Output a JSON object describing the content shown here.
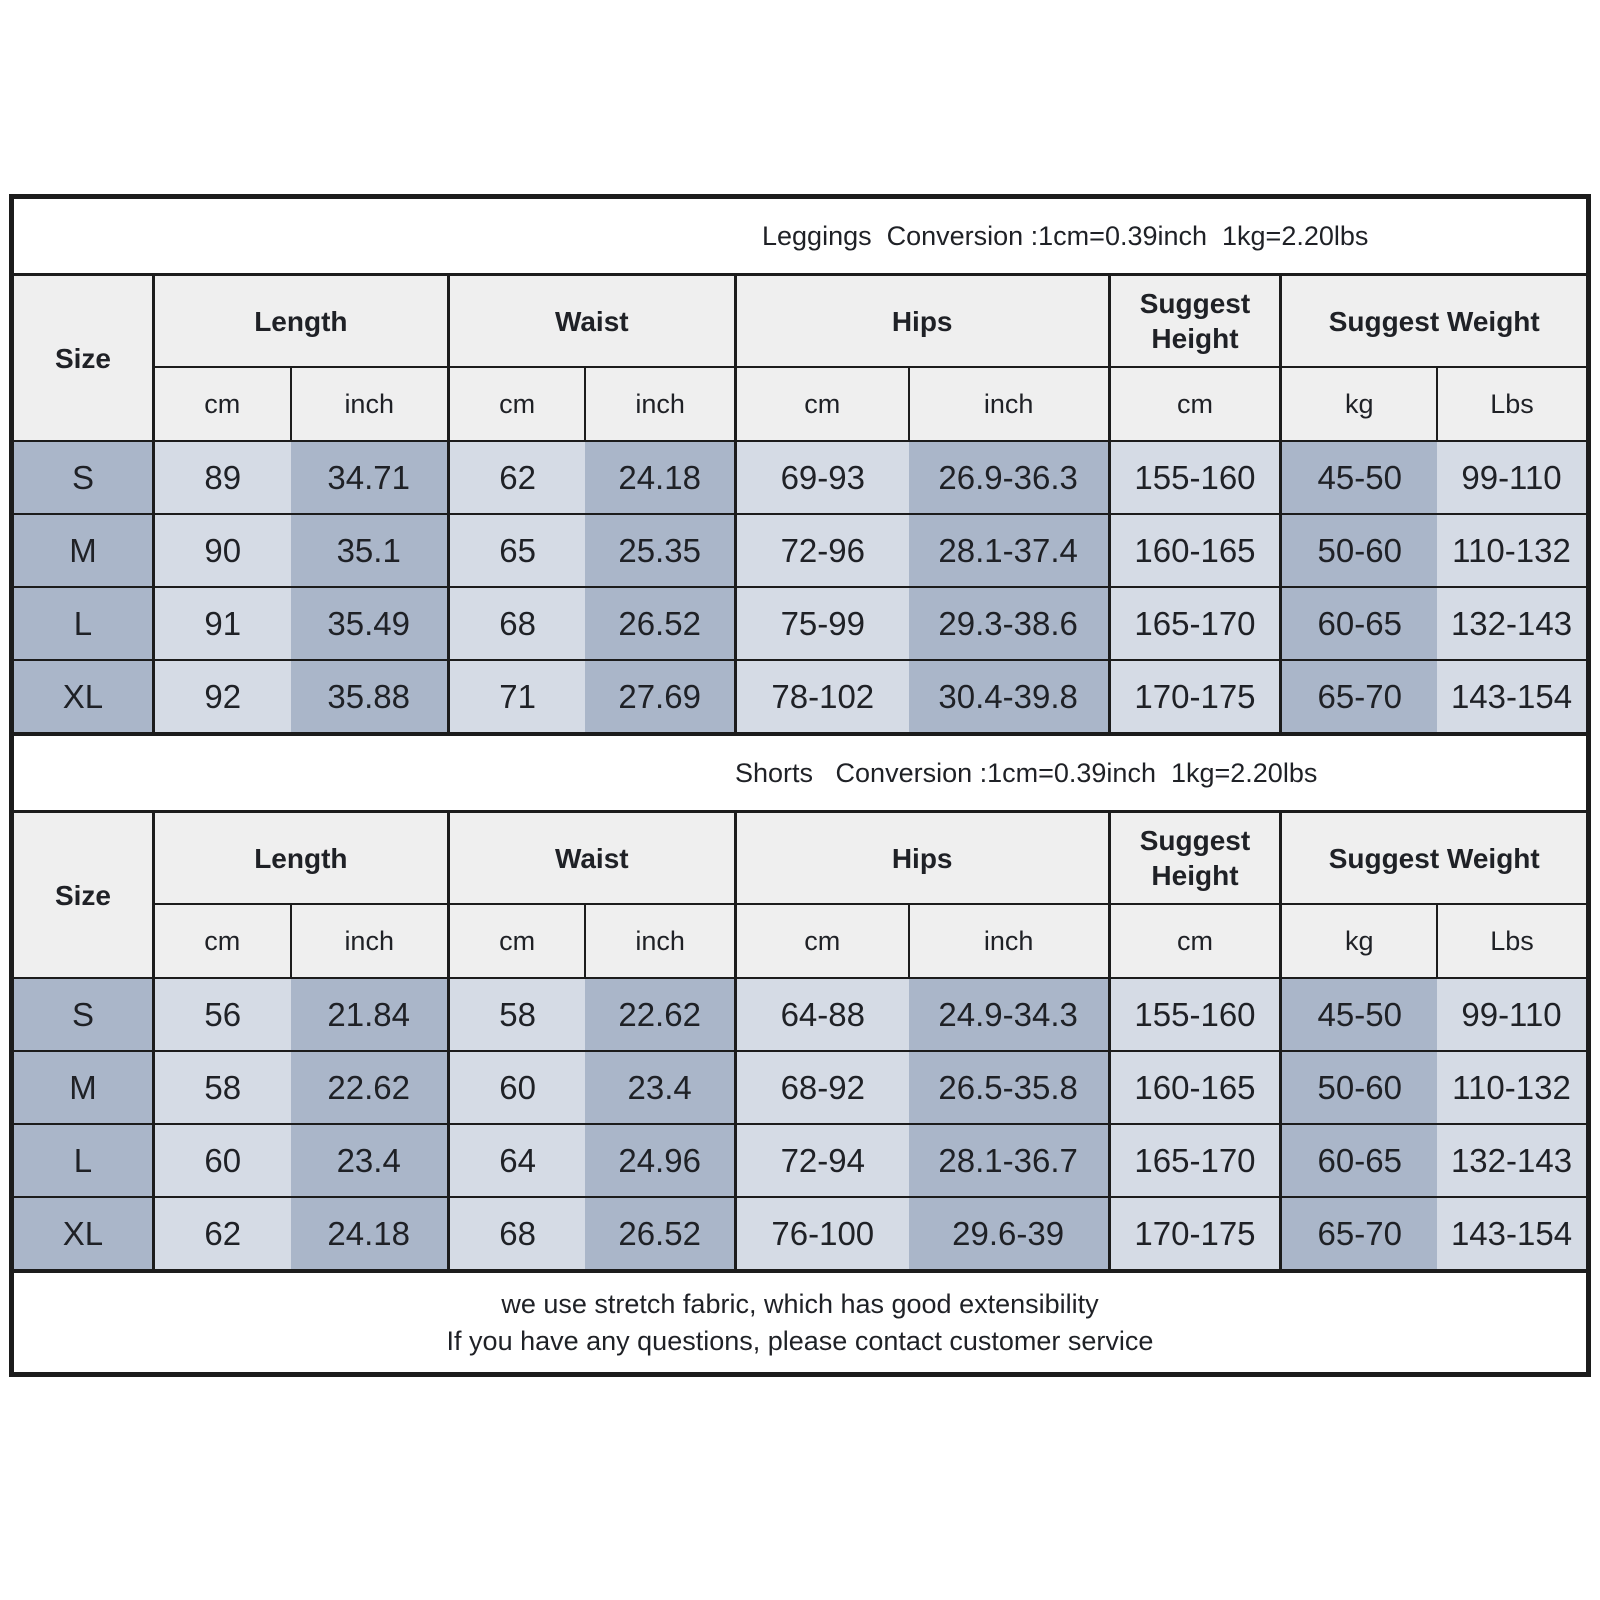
{
  "colors": {
    "border": "#1c1c1c",
    "header_bg": "#efefef",
    "cell_medium": "#aab6c9",
    "cell_light": "#d5dbe5",
    "background": "#ffffff"
  },
  "tables": [
    {
      "title": "Leggings  Conversion :1cm=0.39inch  1kg=2.20lbs",
      "groups": [
        "Size",
        "Length",
        "Waist",
        "Hips",
        "Suggest Height",
        "Suggest Weight"
      ],
      "subheaders": [
        "cm",
        "inch",
        "cm",
        "inch",
        "cm",
        "inch",
        "cm",
        "kg",
        "Lbs"
      ],
      "rows": [
        {
          "size": "S",
          "values": [
            "89",
            "34.71",
            "62",
            "24.18",
            "69-93",
            "26.9-36.3",
            "155-160",
            "45-50",
            "99-110"
          ]
        },
        {
          "size": "M",
          "values": [
            "90",
            "35.1",
            "65",
            "25.35",
            "72-96",
            "28.1-37.4",
            "160-165",
            "50-60",
            "110-132"
          ]
        },
        {
          "size": "L",
          "values": [
            "91",
            "35.49",
            "68",
            "26.52",
            "75-99",
            "29.3-38.6",
            "165-170",
            "60-65",
            "132-143"
          ]
        },
        {
          "size": "XL",
          "values": [
            "92",
            "35.88",
            "71",
            "27.69",
            "78-102",
            "30.4-39.8",
            "170-175",
            "65-70",
            "143-154"
          ]
        }
      ]
    },
    {
      "title": "Shorts   Conversion :1cm=0.39inch  1kg=2.20lbs",
      "groups": [
        "Size",
        "Length",
        "Waist",
        "Hips",
        "Suggest Height",
        "Suggest Weight"
      ],
      "subheaders": [
        "cm",
        "inch",
        "cm",
        "inch",
        "cm",
        "inch",
        "cm",
        "kg",
        "Lbs"
      ],
      "rows": [
        {
          "size": "S",
          "values": [
            "56",
            "21.84",
            "58",
            "22.62",
            "64-88",
            "24.9-34.3",
            "155-160",
            "45-50",
            "99-110"
          ]
        },
        {
          "size": "M",
          "values": [
            "58",
            "22.62",
            "60",
            "23.4",
            "68-92",
            "26.5-35.8",
            "160-165",
            "50-60",
            "110-132"
          ]
        },
        {
          "size": "L",
          "values": [
            "60",
            "23.4",
            "64",
            "24.96",
            "72-94",
            "28.1-36.7",
            "165-170",
            "60-65",
            "132-143"
          ]
        },
        {
          "size": "XL",
          "values": [
            "62",
            "24.18",
            "68",
            "26.52",
            "76-100",
            "29.6-39",
            "170-175",
            "65-70",
            "143-154"
          ]
        }
      ]
    }
  ],
  "footer": {
    "line1": "we use stretch fabric, which has good extensibility",
    "line2": "If you have any questions, please contact customer service"
  }
}
